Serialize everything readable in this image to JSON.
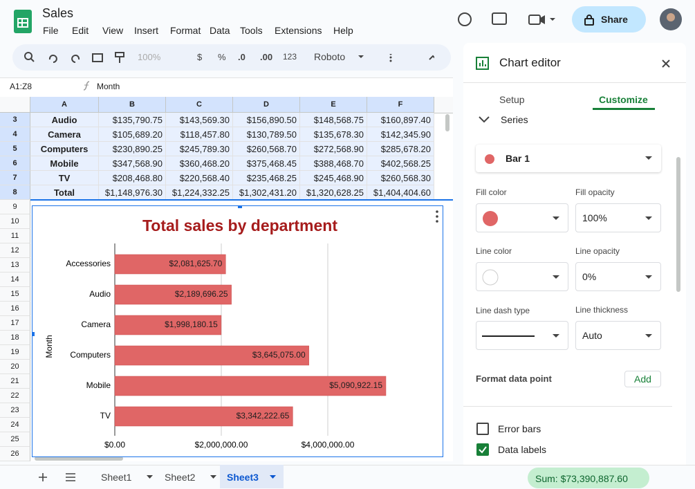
{
  "header": {
    "title": "Sales",
    "menu": [
      "File",
      "Edit",
      "View",
      "Insert",
      "Format",
      "Data",
      "Tools",
      "Extensions",
      "Help"
    ],
    "share": "Share"
  },
  "toolbar": {
    "zoom": "100%",
    "currency": "$",
    "percent": "%",
    "decrease_decimal": ".0",
    "increase_decimal": ".00",
    "format": "123",
    "font": "Roboto"
  },
  "formula_bar": {
    "range": "A1:Z8",
    "content": "Month"
  },
  "sheet": {
    "columns": [
      "A",
      "B",
      "C",
      "D",
      "E",
      "F"
    ],
    "row_numbers": [
      3,
      4,
      5,
      6,
      7,
      8,
      9,
      10,
      11,
      12,
      13,
      14,
      15,
      16,
      17,
      18,
      19,
      20,
      21,
      22,
      23,
      24,
      25,
      26
    ],
    "rows": [
      [
        "Audio",
        "$135,790.75",
        "$143,569.30",
        "$156,890.50",
        "$148,568.75",
        "$160,897.40"
      ],
      [
        "Camera",
        "$105,689.20",
        "$118,457.80",
        "$130,789.50",
        "$135,678.30",
        "$142,345.90"
      ],
      [
        "Computers",
        "$230,890.25",
        "$245,789.30",
        "$260,568.70",
        "$272,568.90",
        "$285,678.20"
      ],
      [
        "Mobile",
        "$347,568.90",
        "$360,468.20",
        "$375,468.45",
        "$388,468.70",
        "$402,568.25"
      ],
      [
        "TV",
        "$208,468.80",
        "$220,568.40",
        "$235,468.25",
        "$245,468.90",
        "$260,568.30"
      ],
      [
        "Total",
        "$1,148,976.30",
        "$1,224,332.25",
        "$1,302,431.20",
        "$1,320,628.25",
        "$1,404,404.60"
      ]
    ]
  },
  "chart_data": {
    "type": "hbar",
    "title": "Total sales by department",
    "y_label": "Month",
    "categories": [
      "Accessories",
      "Audio",
      "Camera",
      "Computers",
      "Mobile",
      "TV"
    ],
    "values": [
      2081625.7,
      2189696.25,
      1998180.15,
      3645075.0,
      5090922.15,
      3342222.65
    ],
    "value_labels": [
      "$2,081,625.70",
      "$2,189,696.25",
      "$1,998,180.15",
      "$3,645,075.00",
      "$5,090,922.15",
      "$3,342,222.65"
    ],
    "color": "#e06666",
    "xlim": [
      0,
      6000000
    ],
    "xticks": [
      {
        "value": 0,
        "label": "$0.00"
      },
      {
        "value": 2000000,
        "label": "$2,000,000.00"
      },
      {
        "value": 4000000,
        "label": "$4,000,000.00"
      }
    ],
    "grid": true
  },
  "editor": {
    "title": "Chart editor",
    "tabs": [
      "Setup",
      "Customize"
    ],
    "section": "Series",
    "series": "Bar 1",
    "fill_color": "Fill color",
    "fill_opacity": "Fill opacity",
    "fill_opacity_value": "100%",
    "line_color": "Line color",
    "line_opacity": "Line opacity",
    "line_opacity_value": "0%",
    "line_dash_type": "Line dash type",
    "line_thickness": "Line thickness",
    "line_thickness_value": "Auto",
    "format_data_point": "Format data point",
    "add": "Add",
    "error_bars": "Error bars",
    "data_labels": "Data labels"
  },
  "tabs": {
    "sheets": [
      "Sheet1",
      "Sheet2",
      "Sheet3"
    ],
    "sum": "Sum: $73,390,887.60"
  }
}
